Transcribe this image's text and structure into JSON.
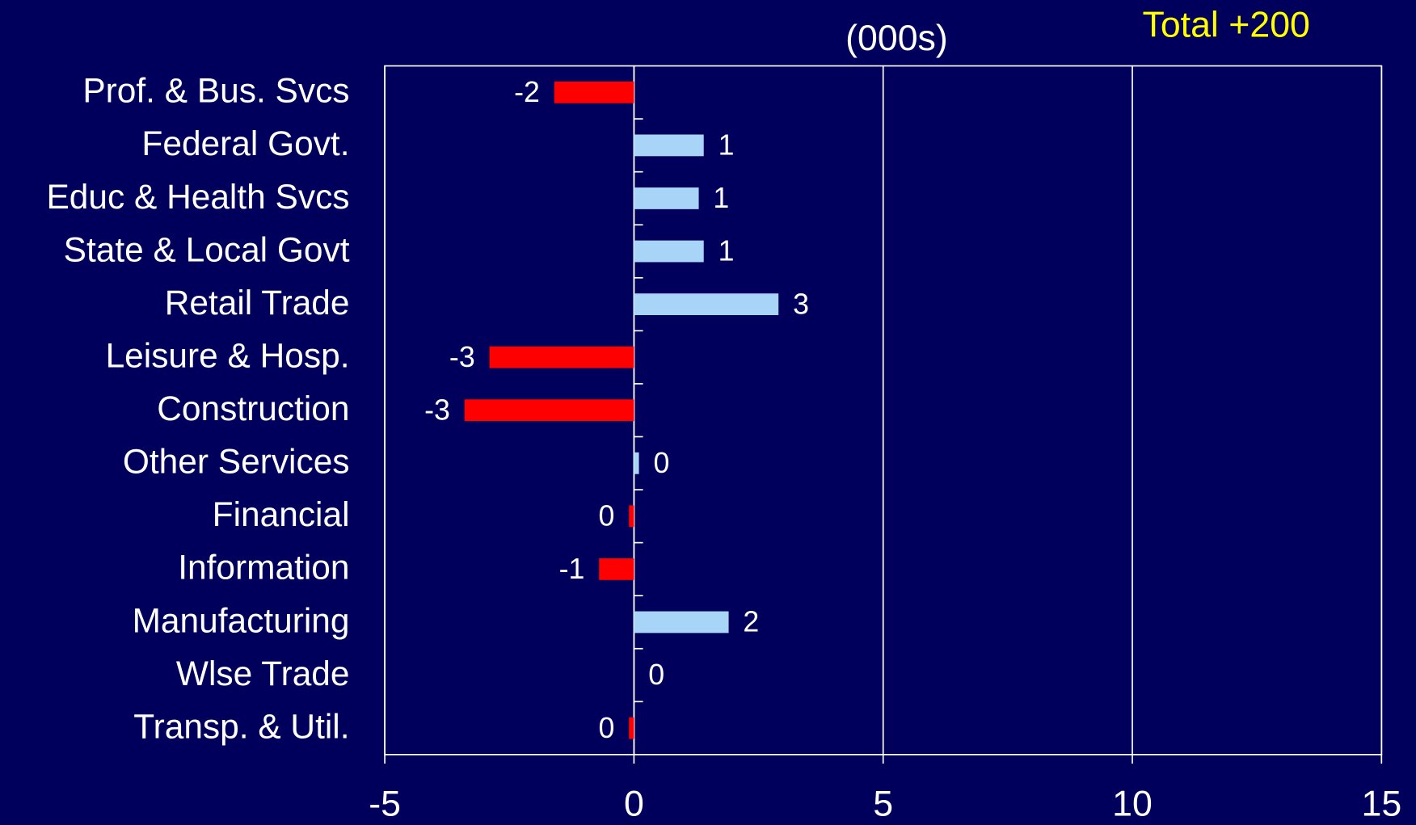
{
  "chart_data": {
    "type": "barh",
    "subtitle": "(000s)",
    "annotation": "Total  +200",
    "categories": [
      "Prof. & Bus. Svcs",
      "Federal Govt.",
      "Educ & Health Svcs",
      "State & Local Govt",
      "Retail Trade",
      "Leisure & Hosp.",
      "Construction",
      "Other Services",
      "Financial",
      "Information",
      "Manufacturing",
      "Wlse Trade",
      "Transp. & Util."
    ],
    "values": [
      -1.6,
      1.4,
      1.3,
      1.4,
      2.9,
      -2.9,
      -3.4,
      0.1,
      -0.1,
      -0.7,
      1.9,
      0,
      -0.1
    ],
    "value_labels": [
      "-2",
      "1",
      "1",
      "1",
      "3",
      "-3",
      "-3",
      "0",
      "0",
      "-1",
      "2",
      "0",
      "0"
    ],
    "positive_color": "#a8d4f8",
    "negative_color": "#ff0000",
    "xlim": [
      -5,
      15
    ],
    "xticks": [
      -5,
      0,
      5,
      10,
      15
    ],
    "grid": true
  }
}
